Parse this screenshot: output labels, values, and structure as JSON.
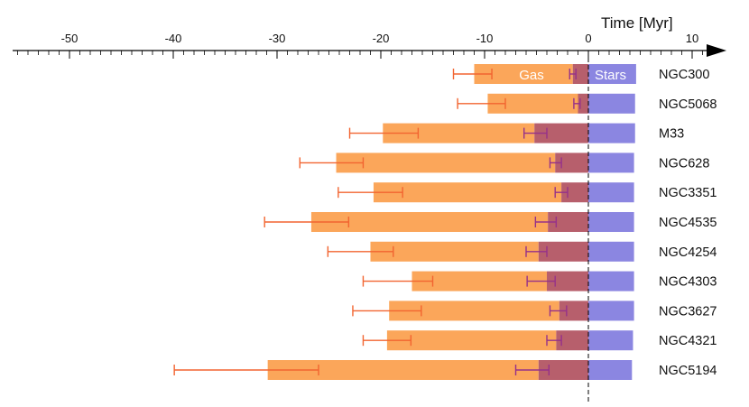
{
  "chart_data": {
    "type": "bar",
    "subtype": "horizontal timeline (stacked gas/overlap/stars durations)",
    "xlabel": "Time [Myr]",
    "xlim": [
      -56,
      12
    ],
    "major_ticks": [
      -50,
      -40,
      -30,
      -20,
      -10,
      0,
      10
    ],
    "major_tick_labels": [
      "-50",
      "-40",
      "-30",
      "-20",
      "-10",
      "0",
      "10"
    ],
    "minor_tick_step": 1,
    "series_labels": {
      "gas": "Gas",
      "stars": "Stars"
    },
    "colors": {
      "gas": "#fba65a",
      "overlap": "#b75f6c",
      "stars": "#8b86e1",
      "gas_error": "#f26430",
      "overlap_error": "#96318a",
      "axis": "#000000"
    },
    "galaxies": [
      {
        "name": "NGC300",
        "gas_start": -11.0,
        "gas_err_lo": -13.0,
        "gas_err_hi": -9.3,
        "overlap_start": -1.5,
        "overlap_err_lo": -1.8,
        "overlap_err_hi": -1.2,
        "stars_end": 4.6
      },
      {
        "name": "NGC5068",
        "gas_start": -9.7,
        "gas_err_lo": -12.6,
        "gas_err_hi": -8.0,
        "overlap_start": -1.0,
        "overlap_err_lo": -1.4,
        "overlap_err_hi": -0.8,
        "stars_end": 4.5
      },
      {
        "name": "M33",
        "gas_start": -19.8,
        "gas_err_lo": -23.0,
        "gas_err_hi": -16.4,
        "overlap_start": -5.2,
        "overlap_err_lo": -6.2,
        "overlap_err_hi": -4.0,
        "stars_end": 4.5
      },
      {
        "name": "NGC628",
        "gas_start": -24.3,
        "gas_err_lo": -27.8,
        "gas_err_hi": -21.7,
        "overlap_start": -3.2,
        "overlap_err_lo": -3.7,
        "overlap_err_hi": -2.6,
        "stars_end": 4.4
      },
      {
        "name": "NGC3351",
        "gas_start": -20.7,
        "gas_err_lo": -24.1,
        "gas_err_hi": -17.9,
        "overlap_start": -2.6,
        "overlap_err_lo": -3.2,
        "overlap_err_hi": -2.0,
        "stars_end": 4.4
      },
      {
        "name": "NGC4535",
        "gas_start": -26.7,
        "gas_err_lo": -31.2,
        "gas_err_hi": -23.1,
        "overlap_start": -3.9,
        "overlap_err_lo": -5.1,
        "overlap_err_hi": -3.1,
        "stars_end": 4.4
      },
      {
        "name": "NGC4254",
        "gas_start": -21.0,
        "gas_err_lo": -25.1,
        "gas_err_hi": -18.8,
        "overlap_start": -4.8,
        "overlap_err_lo": -6.0,
        "overlap_err_hi": -4.0,
        "stars_end": 4.4
      },
      {
        "name": "NGC4303",
        "gas_start": -17.0,
        "gas_err_lo": -21.7,
        "gas_err_hi": -15.0,
        "overlap_start": -4.0,
        "overlap_err_lo": -5.9,
        "overlap_err_hi": -3.2,
        "stars_end": 4.4
      },
      {
        "name": "NGC3627",
        "gas_start": -19.2,
        "gas_err_lo": -22.7,
        "gas_err_hi": -16.1,
        "overlap_start": -2.8,
        "overlap_err_lo": -3.7,
        "overlap_err_hi": -2.1,
        "stars_end": 4.4
      },
      {
        "name": "NGC4321",
        "gas_start": -19.4,
        "gas_err_lo": -21.7,
        "gas_err_hi": -17.1,
        "overlap_start": -3.1,
        "overlap_err_lo": -4.0,
        "overlap_err_hi": -2.6,
        "stars_end": 4.3
      },
      {
        "name": "NGC5194",
        "gas_start": -30.9,
        "gas_err_lo": -39.9,
        "gas_err_hi": -26.0,
        "overlap_start": -4.8,
        "overlap_err_lo": -7.0,
        "overlap_err_hi": -3.8,
        "stars_end": 4.2
      }
    ]
  }
}
